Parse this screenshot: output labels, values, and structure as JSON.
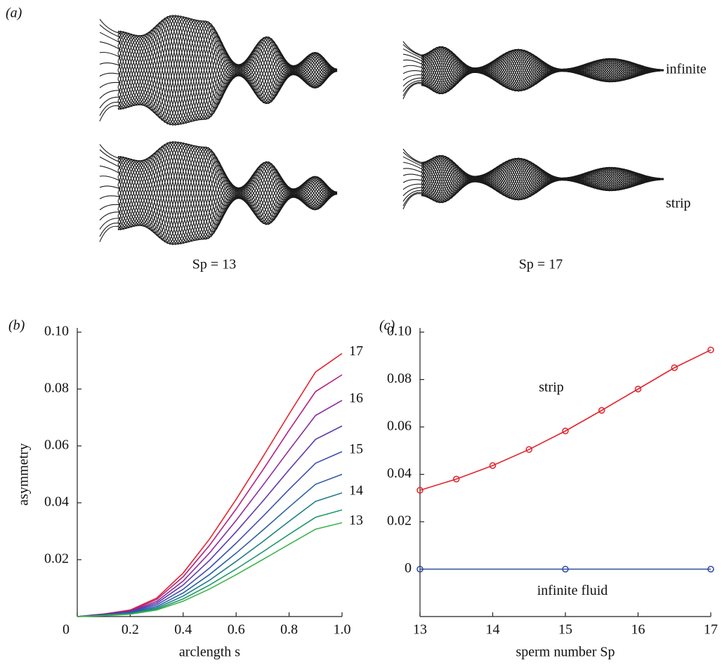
{
  "panel_a": {
    "label": "(a)",
    "conditions": [
      "infinite",
      "strip"
    ],
    "sperm_numbers": [
      "Sp = 13",
      "Sp = 17"
    ]
  },
  "chart_data": [
    {
      "type": "line",
      "panel_label": "(b)",
      "xlabel": "arclength s",
      "ylabel": "asymmetry",
      "x": [
        0,
        0.1,
        0.2,
        0.3,
        0.4,
        0.5,
        0.6,
        0.7,
        0.8,
        0.9,
        1
      ],
      "xlim": [
        0,
        1
      ],
      "ylim": [
        0,
        0.1
      ],
      "xticks": [
        0,
        0.2,
        0.4,
        0.6,
        0.8,
        {
          "value": 1,
          "label": "1.0"
        }
      ],
      "yticks": [
        0.02,
        0.04,
        0.06,
        0.08,
        {
          "value": 0.1,
          "label": "0.10"
        }
      ],
      "series": [
        {
          "name": "17",
          "color": "#e3232b",
          "values": [
            0,
            0.0009,
            0.0023,
            0.0065,
            0.0153,
            0.0273,
            0.0412,
            0.056,
            0.0712,
            0.086,
            0.0925
          ]
        },
        {
          "color": "#b5207e",
          "values": [
            0,
            0.0009,
            0.0021,
            0.006,
            0.014,
            0.0251,
            0.0378,
            0.0514,
            0.0655,
            0.0791,
            0.085
          ]
        },
        {
          "name": "16",
          "color": "#8c2a9c",
          "values": [
            0,
            0.0008,
            0.0019,
            0.0053,
            0.0125,
            0.0224,
            0.0338,
            0.046,
            0.0585,
            0.0707,
            0.076
          ]
        },
        {
          "color": "#5c3aa9",
          "values": [
            0,
            0.0007,
            0.0017,
            0.0047,
            0.0111,
            0.0198,
            0.0298,
            0.0405,
            0.0516,
            0.0623,
            0.067
          ]
        },
        {
          "name": "15",
          "color": "#3b4fb2",
          "values": [
            0,
            0.0006,
            0.0015,
            0.0041,
            0.0096,
            0.0171,
            0.0258,
            0.0351,
            0.0447,
            0.0539,
            0.058
          ]
        },
        {
          "color": "#2a5fa6",
          "values": [
            0,
            0.0005,
            0.0013,
            0.0035,
            0.0083,
            0.0148,
            0.0223,
            0.0303,
            0.0385,
            0.0465,
            0.05
          ]
        },
        {
          "name": "14",
          "color": "#1f7e88",
          "values": [
            0,
            0.0004,
            0.0011,
            0.003,
            0.0072,
            0.0128,
            0.0194,
            0.0263,
            0.0335,
            0.0405,
            0.0435
          ]
        },
        {
          "color": "#20986a",
          "values": [
            0,
            0.0004,
            0.0009,
            0.0026,
            0.0062,
            0.0111,
            0.0167,
            0.0227,
            0.0289,
            0.0349,
            0.0375
          ]
        },
        {
          "name": "13",
          "color": "#3cb54a",
          "values": [
            0,
            0.0003,
            0.0008,
            0.0023,
            0.0054,
            0.0097,
            0.0147,
            0.02,
            0.0254,
            0.0307,
            0.033
          ]
        }
      ]
    },
    {
      "type": "line",
      "panel_label": "(c)",
      "xlabel": "sperm number Sp",
      "marker": "circle",
      "xlim": [
        13,
        17
      ],
      "ylim": [
        -0.02,
        0.1
      ],
      "xticks": [
        13,
        14,
        15,
        16,
        17
      ],
      "yticks": [
        0,
        0.02,
        0.04,
        0.06,
        0.08,
        {
          "value": 0.1,
          "label": "0.10"
        }
      ],
      "series": [
        {
          "name": "strip",
          "color": "#e3232b",
          "x": [
            13,
            13.5,
            14,
            14.5,
            15,
            15.5,
            16,
            16.5,
            17
          ],
          "values": [
            0.0333,
            0.038,
            0.0437,
            0.0505,
            0.0583,
            0.067,
            0.076,
            0.085,
            0.0925
          ]
        },
        {
          "name": "infinite fluid",
          "color": "#2e4a9e",
          "x": [
            13,
            15,
            17
          ],
          "values": [
            0,
            0,
            0
          ]
        }
      ]
    }
  ]
}
